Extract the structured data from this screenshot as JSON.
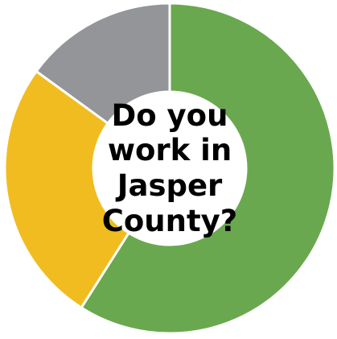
{
  "chart_data": {
    "type": "pie",
    "variant": "donut",
    "title": "Do you\nwork in\nJasper\nCounty?",
    "slices": [
      {
        "value": 59,
        "color": "#6aa84f"
      },
      {
        "value": 26,
        "color": "#f1bc1f"
      },
      {
        "value": 15,
        "color": "#939598"
      }
    ],
    "legend": "none"
  }
}
